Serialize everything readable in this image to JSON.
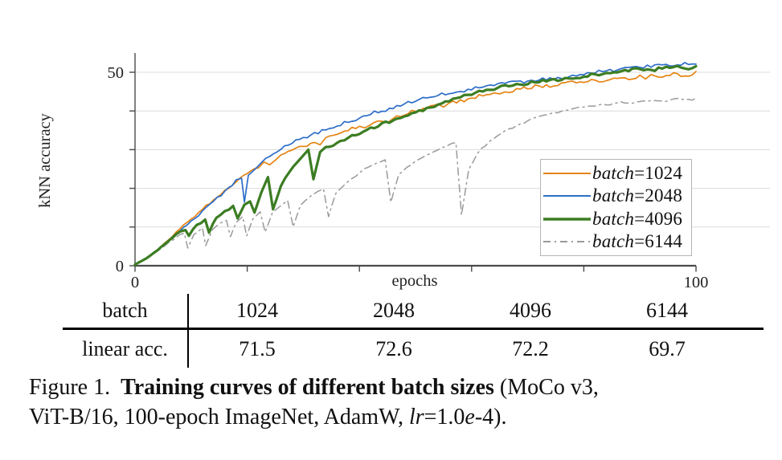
{
  "chart_data": {
    "type": "line",
    "title": "",
    "xlabel": "epochs",
    "ylabel": "kNN accuracy",
    "xlim": [
      0,
      100
    ],
    "ylim": [
      0,
      55
    ],
    "x_ticks": [
      0,
      20,
      40,
      60,
      80,
      100
    ],
    "x_tick_labels": [
      {
        "value": 0,
        "label": "0"
      },
      {
        "value": 100,
        "label": "100"
      }
    ],
    "y_ticks": [
      0,
      10,
      20,
      30,
      40,
      50
    ],
    "y_tick_labels": [
      {
        "value": 0,
        "label": "0"
      },
      {
        "value": 50,
        "label": "50"
      }
    ],
    "grid": "horizontal",
    "legend_position": "lower-right-inside",
    "axis_color": "#4a4a4a",
    "grid_color": "#dcdcdc",
    "series": [
      {
        "name": "batch=1024",
        "label_prefix": "batch",
        "label_suffix": "=1024",
        "color": "#e58413",
        "width": 1.7,
        "dash": "none",
        "noise": 0.5,
        "keypoints": [
          [
            0,
            0.3
          ],
          [
            2,
            1.9
          ],
          [
            4,
            4
          ],
          [
            6,
            6.6
          ],
          [
            8,
            9.5
          ],
          [
            10,
            12
          ],
          [
            12,
            14.6
          ],
          [
            14,
            17
          ],
          [
            16,
            19.5
          ],
          [
            18,
            21.6
          ],
          [
            20,
            23.8
          ],
          [
            22,
            25.5
          ],
          [
            23,
            26.6
          ],
          [
            24,
            26.1
          ],
          [
            25,
            27.5
          ],
          [
            26,
            28.4
          ],
          [
            28,
            29.6
          ],
          [
            30,
            31
          ],
          [
            32,
            32
          ],
          [
            33,
            31.4
          ],
          [
            34,
            33
          ],
          [
            36,
            34
          ],
          [
            38,
            35
          ],
          [
            40,
            36
          ],
          [
            41,
            35.4
          ],
          [
            42,
            36.5
          ],
          [
            44,
            37.5
          ],
          [
            45,
            37
          ],
          [
            46,
            38
          ],
          [
            48,
            39
          ],
          [
            50,
            40
          ],
          [
            52,
            40.6
          ],
          [
            54,
            41.5
          ],
          [
            55,
            41
          ],
          [
            56,
            42
          ],
          [
            58,
            42.6
          ],
          [
            60,
            43.4
          ],
          [
            62,
            44
          ],
          [
            64,
            44.6
          ],
          [
            65,
            44.2
          ],
          [
            66,
            45
          ],
          [
            68,
            45.5
          ],
          [
            70,
            46
          ],
          [
            72,
            46.4
          ],
          [
            74,
            46.4
          ],
          [
            76,
            47
          ],
          [
            78,
            47.4
          ],
          [
            80,
            47.6
          ],
          [
            82,
            48
          ],
          [
            84,
            47.6
          ],
          [
            86,
            48.5
          ],
          [
            88,
            48.4
          ],
          [
            90,
            49
          ],
          [
            91,
            48.4
          ],
          [
            92,
            49.4
          ],
          [
            94,
            49
          ],
          [
            96,
            49.6
          ],
          [
            98,
            49.2
          ],
          [
            100,
            50
          ]
        ]
      },
      {
        "name": "batch=2048",
        "label_prefix": "batch",
        "label_suffix": "=2048",
        "color": "#2d6ec8",
        "width": 1.7,
        "dash": "none",
        "noise": 0.5,
        "keypoints": [
          [
            0,
            0.3
          ],
          [
            2,
            1.9
          ],
          [
            4,
            4
          ],
          [
            6,
            6.4
          ],
          [
            8,
            9
          ],
          [
            10,
            11.5
          ],
          [
            12,
            14
          ],
          [
            14,
            16.6
          ],
          [
            16,
            19.2
          ],
          [
            18,
            22
          ],
          [
            19,
            22.6
          ],
          [
            19.5,
            16.5
          ],
          [
            20.2,
            23.4
          ],
          [
            22,
            26
          ],
          [
            24,
            28.2
          ],
          [
            26,
            30.2
          ],
          [
            28,
            31.8
          ],
          [
            30,
            33.2
          ],
          [
            32,
            34.2
          ],
          [
            34,
            35.2
          ],
          [
            36,
            36.2
          ],
          [
            38,
            37.2
          ],
          [
            40,
            38.2
          ],
          [
            42,
            39.2
          ],
          [
            44,
            40.2
          ],
          [
            46,
            40.8
          ],
          [
            48,
            41.8
          ],
          [
            50,
            42.6
          ],
          [
            52,
            43.2
          ],
          [
            54,
            44
          ],
          [
            56,
            44.6
          ],
          [
            58,
            45.1
          ],
          [
            60,
            45.6
          ],
          [
            62,
            46.1
          ],
          [
            64,
            46.6
          ],
          [
            66,
            47.1
          ],
          [
            68,
            47.5
          ],
          [
            70,
            47.6
          ],
          [
            72,
            48
          ],
          [
            74,
            48.5
          ],
          [
            76,
            48.6
          ],
          [
            78,
            49
          ],
          [
            80,
            49.5
          ],
          [
            82,
            50
          ],
          [
            84,
            50.2
          ],
          [
            86,
            50.5
          ],
          [
            88,
            51
          ],
          [
            90,
            51.1
          ],
          [
            92,
            51.5
          ],
          [
            94,
            52
          ],
          [
            96,
            51.6
          ],
          [
            98,
            52.6
          ],
          [
            100,
            52.2
          ]
        ]
      },
      {
        "name": "batch=4096",
        "label_prefix": "batch",
        "label_suffix": "=4096",
        "color": "#3c7d23",
        "width": 3.2,
        "dash": "none",
        "noise": 0.4,
        "keypoints": [
          [
            0,
            0.3
          ],
          [
            2,
            1.9
          ],
          [
            4,
            4
          ],
          [
            6,
            6.4
          ],
          [
            8,
            8.8
          ],
          [
            9,
            9.3
          ],
          [
            9.6,
            7.8
          ],
          [
            11,
            10.5
          ],
          [
            12.5,
            11.8
          ],
          [
            13.2,
            8.6
          ],
          [
            14.5,
            12.5
          ],
          [
            16,
            14
          ],
          [
            17.5,
            15.5
          ],
          [
            18.3,
            12.3
          ],
          [
            19.5,
            15.6
          ],
          [
            20.5,
            16.6
          ],
          [
            21.3,
            13.8
          ],
          [
            22.5,
            19
          ],
          [
            23.7,
            22.8
          ],
          [
            24.6,
            14.6
          ],
          [
            26,
            20.6
          ],
          [
            27.5,
            24
          ],
          [
            29,
            27
          ],
          [
            30,
            28.5
          ],
          [
            30.9,
            30
          ],
          [
            31.8,
            22.3
          ],
          [
            33,
            29.5
          ],
          [
            34,
            30.5
          ],
          [
            36,
            31.6
          ],
          [
            38,
            33
          ],
          [
            40,
            34.2
          ],
          [
            42,
            35.5
          ],
          [
            44,
            36.6
          ],
          [
            46,
            37.6
          ],
          [
            48,
            38.6
          ],
          [
            50,
            39.6
          ],
          [
            52,
            40.6
          ],
          [
            54,
            41.6
          ],
          [
            56,
            42.6
          ],
          [
            58,
            43.5
          ],
          [
            60,
            44.4
          ],
          [
            62,
            45
          ],
          [
            64,
            45.6
          ],
          [
            66,
            46.4
          ],
          [
            68,
            47
          ],
          [
            70,
            47.1
          ],
          [
            72,
            47.5
          ],
          [
            74,
            48
          ],
          [
            76,
            48.1
          ],
          [
            78,
            48.5
          ],
          [
            80,
            49
          ],
          [
            82,
            49.4
          ],
          [
            84,
            50
          ],
          [
            86,
            50.1
          ],
          [
            88,
            50.5
          ],
          [
            90,
            51
          ],
          [
            92,
            50.6
          ],
          [
            94,
            51
          ],
          [
            96,
            51.4
          ],
          [
            98,
            51
          ],
          [
            100,
            51.4
          ]
        ]
      },
      {
        "name": "batch=6144",
        "label_prefix": "batch",
        "label_suffix": "=6144",
        "color": "#9a9a9a",
        "width": 1.5,
        "dash": "9 5 2 5",
        "noise": 0.3,
        "keypoints": [
          [
            0,
            0.3
          ],
          [
            2,
            1.7
          ],
          [
            4,
            3.8
          ],
          [
            6,
            6
          ],
          [
            8,
            8
          ],
          [
            8.8,
            8.4
          ],
          [
            9.4,
            4.6
          ],
          [
            10.5,
            8
          ],
          [
            12,
            9.8
          ],
          [
            12.6,
            5.2
          ],
          [
            13.8,
            9.2
          ],
          [
            15.2,
            11
          ],
          [
            16.3,
            11.8
          ],
          [
            17,
            7.6
          ],
          [
            18,
            11
          ],
          [
            19.2,
            12.6
          ],
          [
            19.9,
            7.6
          ],
          [
            21,
            12.2
          ],
          [
            22.3,
            13.8
          ],
          [
            23.2,
            8.8
          ],
          [
            24.5,
            13.6
          ],
          [
            26,
            15.6
          ],
          [
            27.2,
            16.8
          ],
          [
            28.2,
            10.2
          ],
          [
            29.5,
            15.6
          ],
          [
            31,
            17.6
          ],
          [
            32.5,
            19
          ],
          [
            33.6,
            20
          ],
          [
            34.5,
            12.6
          ],
          [
            35.8,
            18.6
          ],
          [
            37,
            20.6
          ],
          [
            38.5,
            22.4
          ],
          [
            40,
            24
          ],
          [
            41.5,
            25.4
          ],
          [
            43,
            26.6
          ],
          [
            44.6,
            27.4
          ],
          [
            45.6,
            16.5
          ],
          [
            47,
            23.6
          ],
          [
            48.5,
            25.6
          ],
          [
            50,
            27
          ],
          [
            52,
            28.6
          ],
          [
            54,
            30
          ],
          [
            56,
            31.2
          ],
          [
            57.2,
            31.6
          ],
          [
            58.2,
            13.2
          ],
          [
            59.5,
            25
          ],
          [
            61,
            29
          ],
          [
            62.5,
            31.2
          ],
          [
            64,
            33
          ],
          [
            66,
            34.8
          ],
          [
            68,
            36.2
          ],
          [
            70,
            37.4
          ],
          [
            72,
            38.4
          ],
          [
            74,
            39.2
          ],
          [
            76,
            40
          ],
          [
            78,
            40.6
          ],
          [
            80,
            41
          ],
          [
            82,
            41.4
          ],
          [
            84,
            41.6
          ],
          [
            86,
            42
          ],
          [
            88,
            42.2
          ],
          [
            90,
            42.4
          ],
          [
            92,
            42.8
          ],
          [
            94,
            42.5
          ],
          [
            96,
            43.1
          ],
          [
            98,
            42.9
          ],
          [
            100,
            43.2
          ]
        ]
      }
    ]
  },
  "table": {
    "header_label": "batch",
    "row_label": "linear acc.",
    "columns": [
      "1024",
      "2048",
      "4096",
      "6144"
    ],
    "linear_acc": [
      "71.5",
      "72.6",
      "72.2",
      "69.7"
    ]
  },
  "caption": {
    "fig_label": "Figure 1.",
    "title_bold": "Training curves of different batch sizes",
    "tail_line1": " (MoCo v3,",
    "line2_pre": "ViT-B/16, 100-epoch ImageNet, AdamW, ",
    "lr_italic": "lr",
    "mid": "=1.0",
    "e_italic": "e",
    "tail2": "-4)."
  }
}
